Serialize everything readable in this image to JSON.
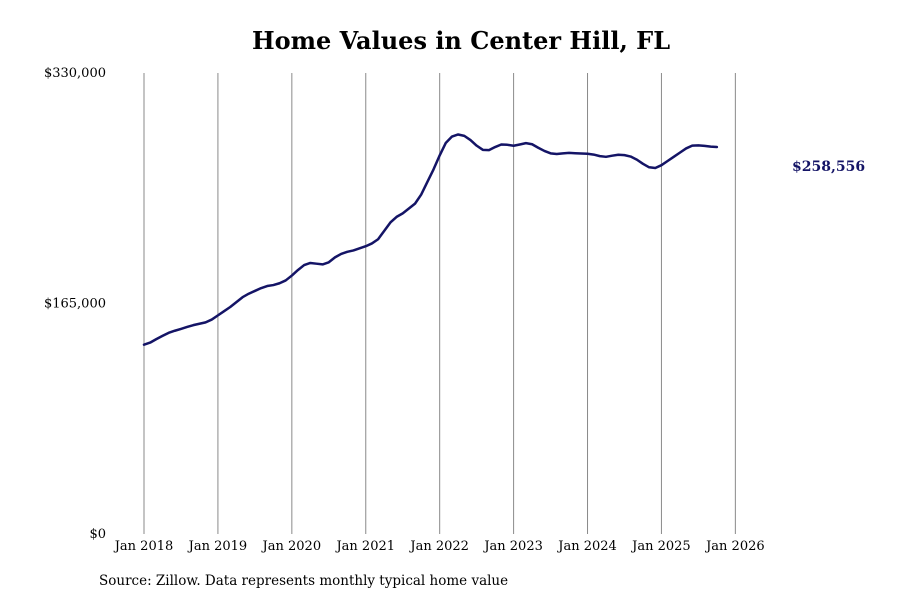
{
  "chart_data": {
    "type": "line",
    "title": "Home Values in Center Hill, FL",
    "xlabel": "",
    "ylabel": "",
    "ylim": [
      0,
      330000
    ],
    "yticks": [
      "$0",
      "$165,000",
      "$330,000"
    ],
    "ytick_values": [
      0,
      165000,
      330000
    ],
    "xticks": [
      "Jan 2018",
      "Jan 2019",
      "Jan 2020",
      "Jan 2021",
      "Jan 2022",
      "Jan 2023",
      "Jan 2024",
      "Jan 2025",
      "Jan 2026"
    ],
    "xtick_months": [
      0,
      12,
      24,
      36,
      48,
      60,
      72,
      84,
      96
    ],
    "xlim_months": [
      0,
      103
    ],
    "grid": "vertical",
    "series": [
      {
        "color": "#141466",
        "end_label": "$258,556",
        "x_start": "2018-01",
        "values": [
          135500,
          137000,
          139500,
          141800,
          144000,
          145500,
          146800,
          148200,
          149500,
          150500,
          151500,
          153500,
          156500,
          159500,
          162500,
          166000,
          169500,
          172000,
          174000,
          176000,
          177500,
          178200,
          179500,
          181500,
          185000,
          189000,
          192500,
          194000,
          193500,
          193000,
          194500,
          198000,
          200500,
          202000,
          203000,
          204500,
          206000,
          208000,
          211000,
          217000,
          223000,
          227000,
          229500,
          233000,
          236500,
          243000,
          252000,
          261000,
          271000,
          280000,
          284500,
          286000,
          285000,
          282000,
          278000,
          275000,
          274800,
          277000,
          278800,
          278600,
          277900,
          278800,
          279800,
          279000,
          276500,
          274200,
          272500,
          272000,
          272500,
          272800,
          272600,
          272400,
          272200,
          271600,
          270500,
          270000,
          270800,
          271500,
          271200,
          270200,
          268000,
          265000,
          262500,
          262000,
          264000,
          267000,
          270000,
          273000,
          276000,
          278000,
          278200,
          277800,
          277300,
          277000,
          258556
        ]
      }
    ]
  },
  "source_note": "Source: Zillow. Data represents monthly typical home value"
}
